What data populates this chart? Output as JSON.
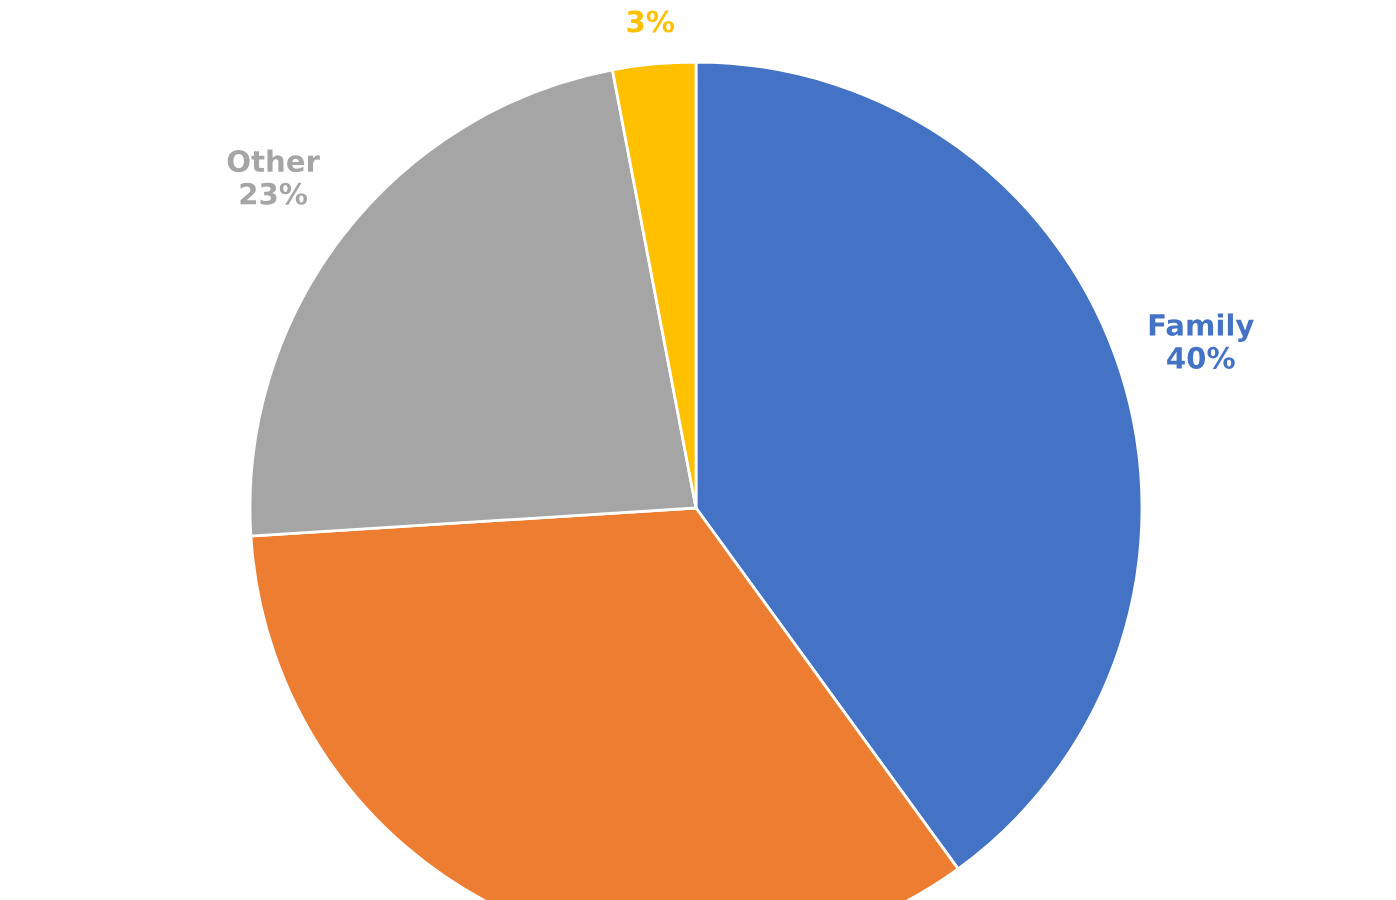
{
  "chart_data": {
    "type": "pie",
    "categories": [
      "Family",
      null,
      "Other",
      null
    ],
    "values": [
      40,
      34,
      23,
      3
    ],
    "colors": [
      "#4472c4",
      "#ed7d31",
      "#a5a5a5",
      "#ffc000"
    ],
    "value_labels": [
      "40%",
      null,
      "23%",
      "3%"
    ]
  }
}
